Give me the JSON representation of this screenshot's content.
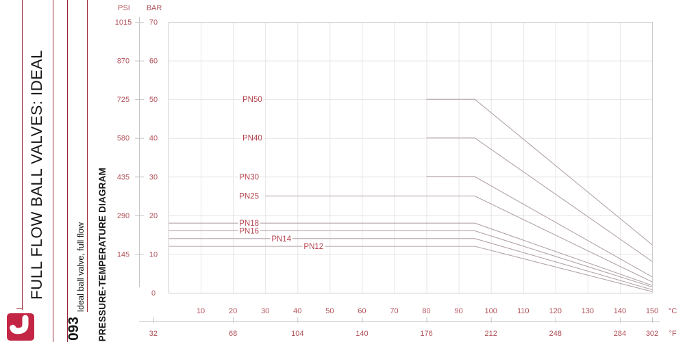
{
  "sidebar": {
    "title": "FULL FLOW BALL VALVES: IDEAL",
    "product_code": "093",
    "product_desc": "Ideal ball valve, full flow",
    "section_label": "PRESSURE-TEMPERATURE DIAGRAM",
    "accent_color": "#9A2232",
    "logo_color": "#C32645"
  },
  "chart_data": {
    "type": "line",
    "title": "PRESSURE-TEMPERATURE DIAGRAM",
    "x_axis_celsius": {
      "unit": "°C",
      "min": 0,
      "max": 150,
      "tick_labels": [
        "10",
        "20",
        "30",
        "40",
        "50",
        "60",
        "70",
        "80",
        "90",
        "100",
        "110",
        "120",
        "130",
        "140",
        "150"
      ]
    },
    "x_axis_fahrenheit": {
      "unit": "°F",
      "ticks": [
        {
          "label": "32",
          "c": -4.7
        },
        {
          "label": "68",
          "c": 20
        },
        {
          "label": "104",
          "c": 40
        },
        {
          "label": "140",
          "c": 60
        },
        {
          "label": "176",
          "c": 80
        },
        {
          "label": "212",
          "c": 100
        },
        {
          "label": "248",
          "c": 120
        },
        {
          "label": "284",
          "c": 140
        },
        {
          "label": "302",
          "c": 150
        }
      ]
    },
    "y_axis": {
      "psi_header": "PSI",
      "bar_header": "BAR",
      "bar_min": 0,
      "bar_max": 70,
      "ticks": [
        {
          "bar": 70,
          "psi": "1015"
        },
        {
          "bar": 60,
          "psi": "870"
        },
        {
          "bar": 50,
          "psi": "725"
        },
        {
          "bar": 40,
          "psi": "580"
        },
        {
          "bar": 30,
          "psi": "435"
        },
        {
          "bar": 20,
          "psi": "290"
        },
        {
          "bar": 10,
          "psi": "145"
        },
        {
          "bar": 0,
          "psi": ""
        }
      ]
    },
    "series": [
      {
        "name": "PN50",
        "bar": 50,
        "flat_from_c": 80,
        "knee_c": 95,
        "end_c": 150,
        "end_bar": 12.4,
        "label_c": 26
      },
      {
        "name": "PN40",
        "bar": 40,
        "flat_from_c": 80,
        "knee_c": 95,
        "end_c": 150,
        "end_bar": 8.1,
        "label_c": 26
      },
      {
        "name": "PN30",
        "bar": 30,
        "flat_from_c": 80,
        "knee_c": 95,
        "end_c": 150,
        "end_bar": 4.1,
        "label_c": 25
      },
      {
        "name": "PN25",
        "bar": 25,
        "flat_from_c": 30,
        "knee_c": 95,
        "end_c": 150,
        "end_bar": 2.8,
        "label_c": 25
      },
      {
        "name": "PN18",
        "bar": 18,
        "flat_from_c": 0,
        "knee_c": 95,
        "end_c": 150,
        "end_bar": 1.9,
        "label_c": 25
      },
      {
        "name": "PN16",
        "bar": 16,
        "flat_from_c": 0,
        "knee_c": 95,
        "end_c": 150,
        "end_bar": 1.5,
        "label_c": 25
      },
      {
        "name": "PN14",
        "bar": 14,
        "flat_from_c": 0,
        "knee_c": 95,
        "end_c": 150,
        "end_bar": 0.8,
        "label_c": 35
      },
      {
        "name": "PN12",
        "bar": 12,
        "flat_from_c": 0,
        "knee_c": 95,
        "end_c": 150,
        "end_bar": 0.3,
        "label_c": 45
      }
    ],
    "grid": {
      "x_step_c": 10,
      "y_step_bar": 10,
      "grid_on": true
    },
    "colors": {
      "series_line": "#b2a3a8",
      "grid": "#e6e5e5",
      "border": "#cccbcb",
      "axis_line": "#c5c4c4",
      "axis_text": "#b05058",
      "pn_label": "#b5434e"
    }
  }
}
